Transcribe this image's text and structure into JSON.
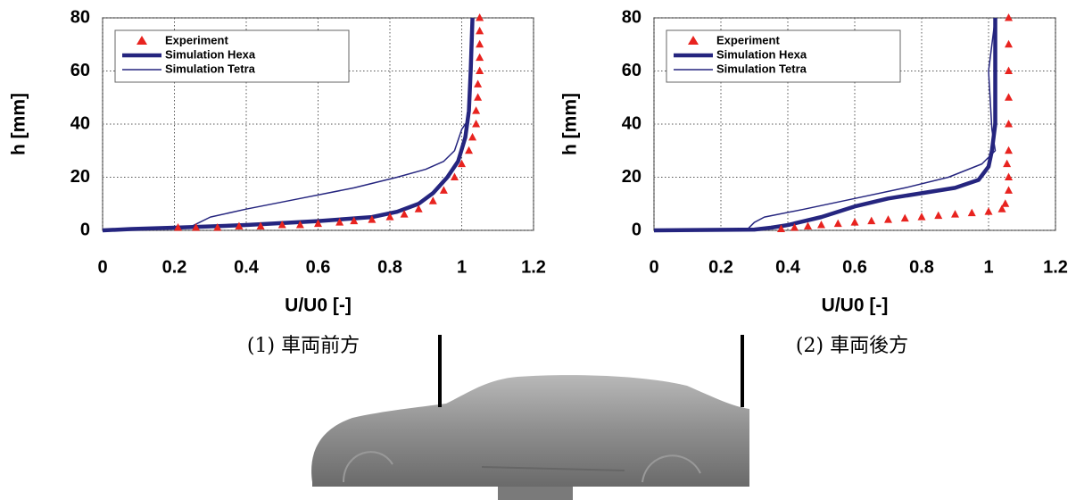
{
  "chart_data": [
    {
      "type": "line",
      "caption": "(1) 車両前方",
      "x_label": "U/U0 [-]",
      "y_label": "h [mm]",
      "xlim": [
        0,
        1.2
      ],
      "ylim": [
        0,
        80
      ],
      "xticks": [
        0,
        0.2,
        0.4,
        0.6,
        0.8,
        1,
        1.2
      ],
      "yticks": [
        0,
        20,
        40,
        60,
        80
      ],
      "grid": true,
      "series": [
        {
          "name": "Experiment",
          "color": "#e8231f",
          "marker": "triangle",
          "x": [
            0.21,
            0.26,
            0.32,
            0.38,
            0.44,
            0.5,
            0.55,
            0.6,
            0.66,
            0.7,
            0.75,
            0.8,
            0.84,
            0.88,
            0.92,
            0.95,
            0.98,
            1.0,
            1.02,
            1.03,
            1.04,
            1.04,
            1.045,
            1.045,
            1.05,
            1.05,
            1.05,
            1.05,
            1.05
          ],
          "values": [
            1,
            1,
            1,
            1.5,
            1.5,
            2,
            2,
            2.5,
            3,
            3.5,
            4,
            5,
            6,
            8,
            11,
            15,
            20,
            25,
            30,
            35,
            40,
            45,
            50,
            55,
            60,
            65,
            70,
            75,
            80
          ]
        },
        {
          "name": "Simulation Hexa",
          "color": "#25257f",
          "width": 4.5,
          "x": [
            0,
            0.08,
            0.2,
            0.4,
            0.6,
            0.75,
            0.82,
            0.88,
            0.92,
            0.96,
            0.99,
            1.01,
            1.02,
            1.025,
            1.03
          ],
          "values": [
            0,
            0.5,
            1,
            2,
            3.5,
            5,
            7,
            10,
            14,
            20,
            26,
            35,
            45,
            60,
            80
          ]
        },
        {
          "name": "Simulation Tetra",
          "color": "#25257f",
          "width": 1.5,
          "x": [
            0,
            0.08,
            0.24,
            0.27,
            0.3,
            0.4,
            0.55,
            0.7,
            0.82,
            0.9,
            0.95,
            0.98,
            1.0,
            1.02,
            1.025,
            1.03
          ],
          "values": [
            0,
            0.5,
            1,
            3,
            5,
            8,
            12,
            16,
            20,
            23,
            26,
            30,
            38,
            42,
            60,
            80
          ]
        }
      ]
    },
    {
      "type": "line",
      "caption": "(2) 車両後方",
      "x_label": "U/U0 [-]",
      "y_label": "h [mm]",
      "xlim": [
        0,
        1.2
      ],
      "ylim": [
        0,
        80
      ],
      "xticks": [
        0,
        0.2,
        0.4,
        0.6,
        0.8,
        1,
        1.2
      ],
      "yticks": [
        0,
        20,
        40,
        60,
        80
      ],
      "grid": true,
      "series": [
        {
          "name": "Experiment",
          "color": "#e8231f",
          "marker": "triangle",
          "x": [
            0.38,
            0.42,
            0.46,
            0.5,
            0.55,
            0.6,
            0.65,
            0.7,
            0.75,
            0.8,
            0.85,
            0.9,
            0.95,
            1.0,
            1.04,
            1.05,
            1.06,
            1.06,
            1.055,
            1.06,
            1.06,
            1.06,
            1.06,
            1.06,
            1.06
          ],
          "values": [
            0.5,
            1,
            1.5,
            2,
            2.5,
            3,
            3.5,
            4,
            4.5,
            5,
            5.5,
            6,
            6.5,
            7,
            8,
            10,
            15,
            20,
            25,
            30,
            40,
            50,
            60,
            70,
            80
          ]
        },
        {
          "name": "Simulation Hexa",
          "color": "#25257f",
          "width": 4.5,
          "x": [
            0,
            0.3,
            0.35,
            0.4,
            0.5,
            0.6,
            0.7,
            0.8,
            0.9,
            0.97,
            1.0,
            1.01,
            1.02,
            1.02,
            1.02
          ],
          "values": [
            0,
            0.3,
            1,
            2,
            5,
            9,
            12,
            14,
            16,
            19,
            24,
            30,
            40,
            60,
            80
          ]
        },
        {
          "name": "Simulation Tetra",
          "color": "#25257f",
          "width": 1.5,
          "x": [
            0,
            0.28,
            0.3,
            0.33,
            0.45,
            0.6,
            0.75,
            0.88,
            0.98,
            1.02,
            1.01,
            1.0,
            1.01,
            1.02
          ],
          "values": [
            0,
            0.5,
            3,
            5,
            8,
            12,
            16,
            20,
            25,
            30,
            38,
            60,
            70,
            80
          ]
        }
      ]
    }
  ]
}
